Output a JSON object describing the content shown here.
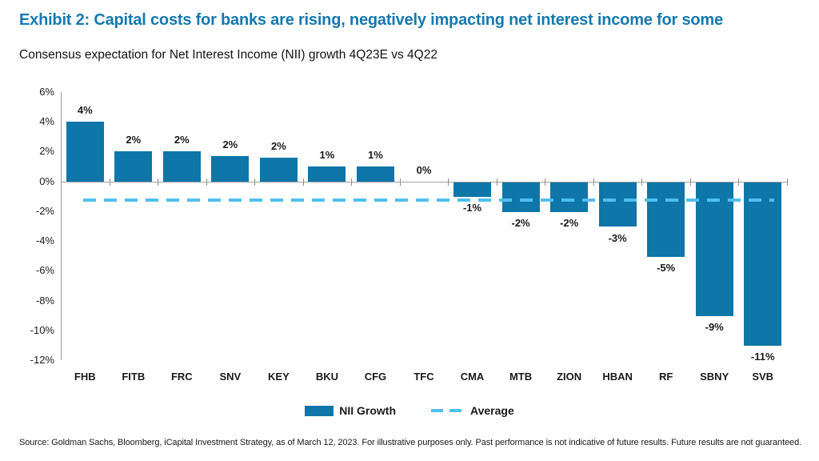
{
  "header": {
    "title": "Exhibit 2: Capital costs for banks are rising, negatively impacting net interest income for some",
    "subtitle": "Consensus expectation for Net Interest Income (NII) growth 4Q23E vs 4Q22"
  },
  "chart_data": {
    "type": "bar",
    "title": "Consensus expectation for Net Interest Income (NII) growth 4Q23E vs 4Q22",
    "categories": [
      "FHB",
      "FITB",
      "FRC",
      "SNV",
      "KEY",
      "BKU",
      "CFG",
      "TFC",
      "CMA",
      "MTB",
      "ZION",
      "HBAN",
      "RF",
      "SBNY",
      "SVB"
    ],
    "values": [
      4.0,
      2.0,
      2.0,
      1.7,
      1.6,
      1.0,
      1.0,
      0.0,
      -1.0,
      -2.0,
      -2.0,
      -3.0,
      -5.0,
      -9.0,
      -11.0
    ],
    "value_labels": [
      "4%",
      "2%",
      "2%",
      "2%",
      "2%",
      "1%",
      "1%",
      "0%",
      "-1%",
      "-2%",
      "-2%",
      "-3%",
      "-5%",
      "-9%",
      "-11%"
    ],
    "average_value": -1.27,
    "ylim": [
      -12,
      6
    ],
    "ytick_step": 2,
    "ytick_values": [
      6,
      4,
      2,
      0,
      -2,
      -4,
      -6,
      -8,
      -10,
      -12
    ],
    "ytick_labels": [
      "6%",
      "4%",
      "2%",
      "0%",
      "-2%",
      "-4%",
      "-6%",
      "-8%",
      "-10%",
      "-12%"
    ],
    "grid": false,
    "legend_position": "bottom",
    "legend": [
      {
        "label": "NII Growth",
        "marker": "bar"
      },
      {
        "label": "Average",
        "marker": "dashed-line"
      }
    ],
    "colors": {
      "bar": "#0e76a8",
      "average_line": "#4fc0ee",
      "axis": "#a0a0a0",
      "title_accent": "#1579af"
    }
  },
  "footer": {
    "source": "Source: Goldman Sachs, Bloomberg, iCapital Investment Strategy, as of March 12, 2023. For illustrative purposes only. Past performance is not indicative of future results. Future results are not guaranteed."
  }
}
